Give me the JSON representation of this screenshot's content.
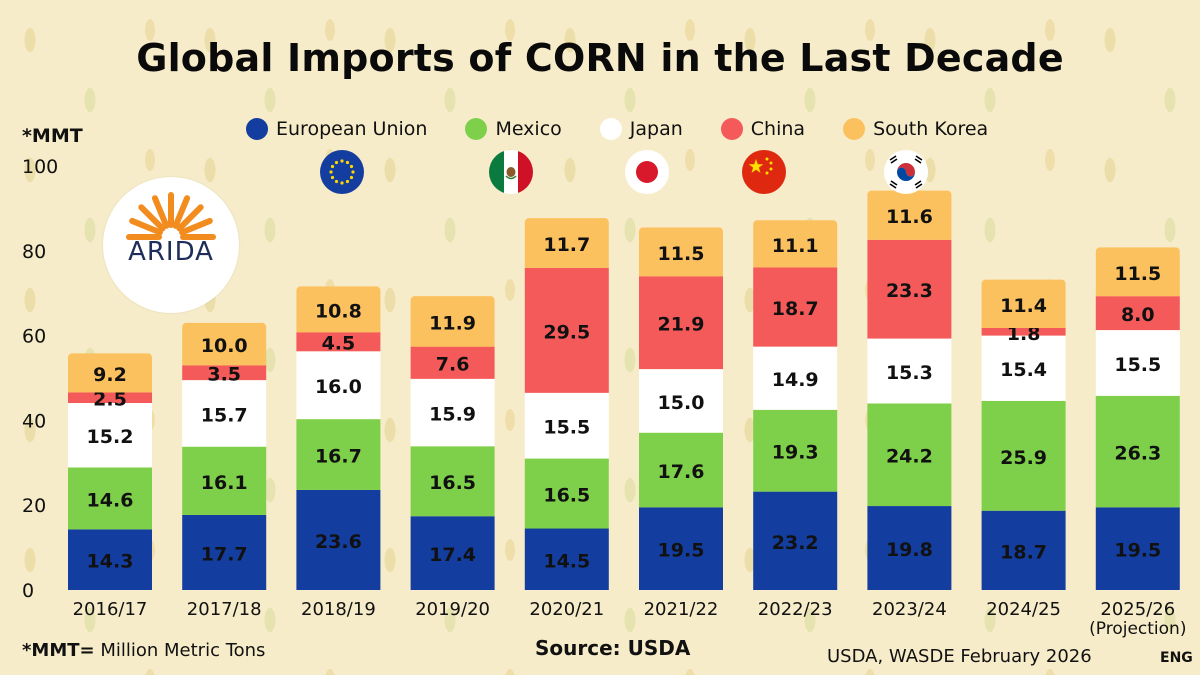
{
  "unit_label": "*MMT",
  "footer": {
    "note_key": "*MMT=",
    "note_value": "Million Metric Tons",
    "source": "Source: USDA",
    "report": "USDA, WASDE February 2026",
    "language": "ENG"
  },
  "logo": {
    "text": "ARIDA",
    "color": "#f28c1e"
  },
  "colors": {
    "European Union": "#133ea0",
    "Mexico": "#7ed04b",
    "Japan": "#ffffff",
    "China": "#f55a5a",
    "South Korea": "#fcc15f"
  },
  "chart_data": {
    "type": "bar",
    "stacked": true,
    "title": "Global Imports of CORN in the Last Decade",
    "xlabel": "",
    "ylabel": "*MMT",
    "ylim": [
      0,
      100
    ],
    "yticks": [
      0,
      20,
      40,
      60,
      80,
      100
    ],
    "grid": false,
    "legend_position": "top",
    "categories": [
      "2016/17",
      "2017/18",
      "2018/19",
      "2019/20",
      "2020/21",
      "2021/22",
      "2022/23",
      "2023/24",
      "2024/25",
      "2025/26"
    ],
    "category_notes": [
      "",
      "",
      "",
      "",
      "",
      "",
      "",
      "",
      "",
      "(Projection)"
    ],
    "series": [
      {
        "name": "European Union",
        "values": [
          14.3,
          17.7,
          23.6,
          17.4,
          14.5,
          19.5,
          23.2,
          19.8,
          18.7,
          19.5
        ]
      },
      {
        "name": "Mexico",
        "values": [
          14.6,
          16.1,
          16.7,
          16.5,
          16.5,
          17.6,
          19.3,
          24.2,
          25.9,
          26.3
        ]
      },
      {
        "name": "Japan",
        "values": [
          15.2,
          15.7,
          16.0,
          15.9,
          15.5,
          15.0,
          14.9,
          15.3,
          15.4,
          15.5
        ]
      },
      {
        "name": "China",
        "values": [
          2.5,
          3.5,
          4.5,
          7.6,
          29.5,
          21.9,
          18.7,
          23.3,
          1.8,
          8.0
        ]
      },
      {
        "name": "South Korea",
        "values": [
          9.2,
          10.0,
          10.8,
          11.9,
          11.7,
          11.5,
          11.1,
          11.6,
          11.4,
          11.5
        ]
      }
    ]
  }
}
